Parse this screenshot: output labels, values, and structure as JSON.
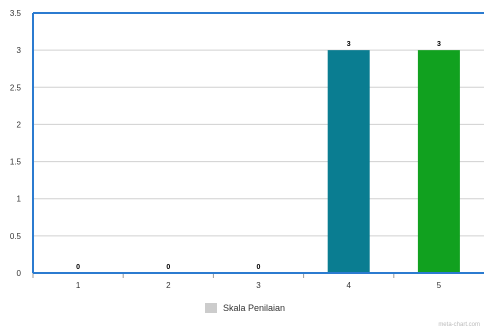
{
  "chart_data": {
    "type": "bar",
    "categories": [
      "1",
      "2",
      "3",
      "4",
      "5"
    ],
    "series": [
      {
        "name": "Skala Penilaian",
        "values": [
          0,
          0,
          0,
          3,
          3
        ]
      }
    ],
    "data_labels": [
      "0",
      "0",
      "0",
      "3",
      "3"
    ],
    "bar_colors": [
      "#0a7d91",
      "#0a7d91",
      "#0a7d91",
      "#0a7d91",
      "#11a11f"
    ],
    "legend_color": "#cccccc",
    "axis_color": "#2b7bd0",
    "ylim": [
      0,
      3.5
    ],
    "yticks": [
      0,
      0.5,
      1,
      1.5,
      2,
      2.5,
      3,
      3.5
    ],
    "ytick_labels": [
      "0",
      "0.5",
      "1",
      "1.5",
      "2",
      "2.5",
      "3",
      "3.5"
    ],
    "grid": true,
    "legend_position": "bottom",
    "xlabel": "",
    "ylabel": ""
  },
  "watermark": "meta-chart.com"
}
